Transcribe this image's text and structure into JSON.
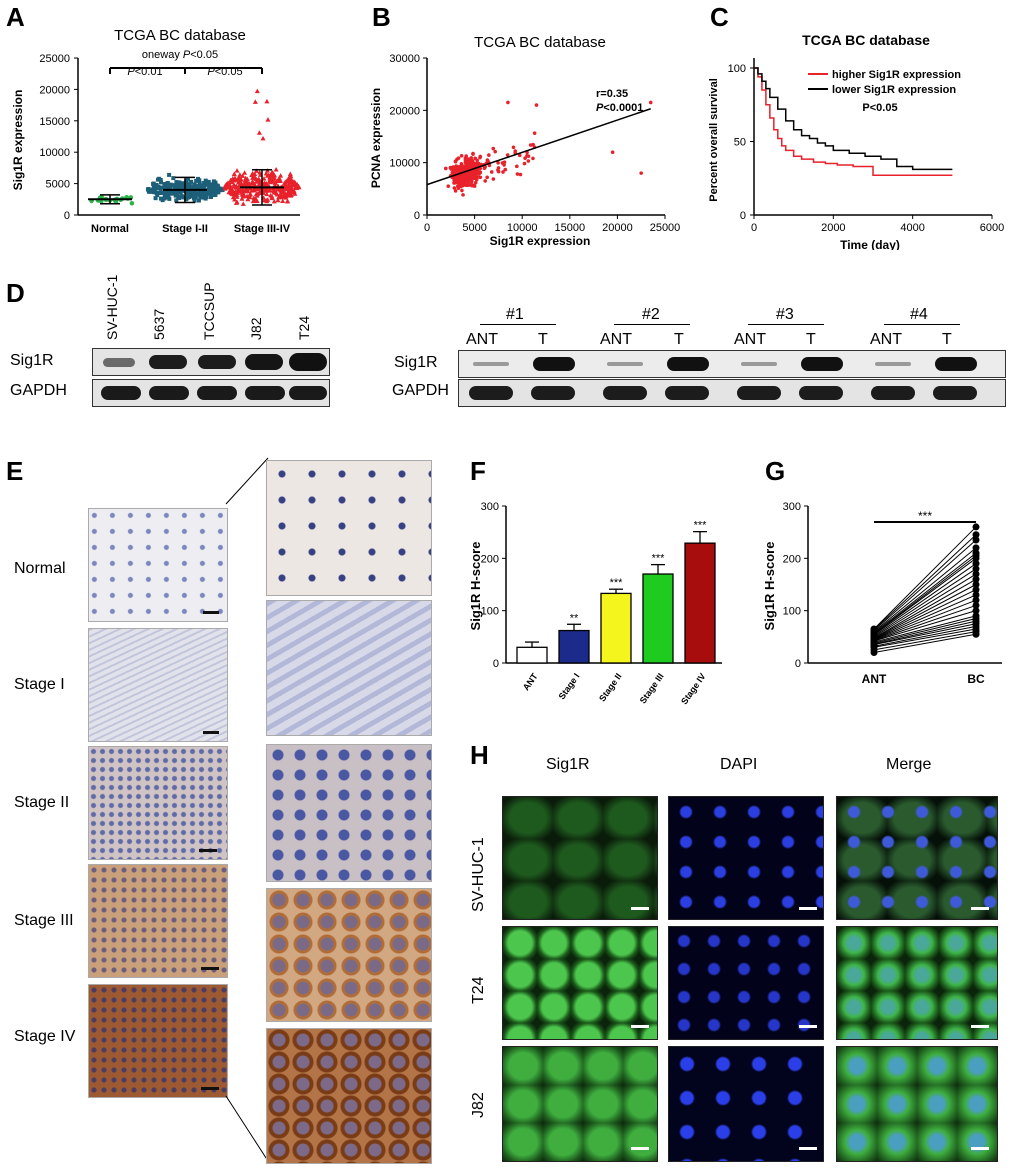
{
  "panels": {
    "A": "A",
    "B": "B",
    "C": "C",
    "D": "D",
    "E": "E",
    "F": "F",
    "G": "G",
    "H": "H"
  },
  "A": {
    "title": "TCGA BC database",
    "oneway_pre": "oneway ",
    "oneway_p": "P",
    "oneway_post": "<0.05",
    "p1_p": "P",
    "p1_post": "<0.01",
    "p2_p": "P",
    "p2_post": "<0.05",
    "ylabel": "Sig1R expression",
    "yticks": [
      "0",
      "5000",
      "10000",
      "15000",
      "20000",
      "25000"
    ],
    "groups": [
      "Normal",
      "Stage I-II",
      "Stage III-IV"
    ],
    "colors": {
      "normal": "#2db34a",
      "early": "#1d5f78",
      "late": "#e8212b"
    }
  },
  "B": {
    "title": "TCGA BC database",
    "r_text": "r=0.35",
    "p_p": "P",
    "p_post": "<0.0001",
    "ylabel": "PCNA expression",
    "xlabel": "Sig1R expression",
    "yticks": [
      "0",
      "10000",
      "20000",
      "30000"
    ],
    "xticks": [
      "0",
      "5000",
      "10000",
      "15000",
      "20000",
      "25000"
    ],
    "color": "#e8212b"
  },
  "C": {
    "title": "TCGA BC database",
    "legend": [
      "higher Sig1R expression",
      "lower Sig1R expression"
    ],
    "ptext": "P<0.05",
    "ylabel": "Percent overall survival",
    "xlabel": "Time (day)",
    "yticks": [
      "0",
      "50",
      "100"
    ],
    "xticks": [
      "0",
      "2000",
      "4000",
      "6000"
    ],
    "colors": {
      "higher": "#e8212b",
      "lower": "#000000"
    }
  },
  "D": {
    "cell_lines": [
      "SV-HUC-1",
      "5637",
      "TCCSUP",
      "J82",
      "T24"
    ],
    "row_labels": [
      "Sig1R",
      "GAPDH"
    ],
    "pairs": [
      "#1",
      "#2",
      "#3",
      "#4"
    ],
    "pair_cols": [
      "ANT",
      "T"
    ]
  },
  "E": {
    "stages": [
      "Normal",
      "Stage I",
      "Stage II",
      "Stage III",
      "Stage IV"
    ]
  },
  "F": {
    "ylabel": "Sig1R H-score",
    "yticks": [
      "0",
      "100",
      "200",
      "300"
    ]
  },
  "G": {
    "ylabel": "Sig1R H-score",
    "yticks": [
      "0",
      "100",
      "200",
      "300"
    ],
    "groups": [
      "ANT",
      "BC"
    ],
    "sig": "***"
  },
  "H": {
    "cols": [
      "Sig1R",
      "DAPI",
      "Merge"
    ],
    "rows": [
      "SV-HUC-1",
      "T24",
      "J82"
    ]
  },
  "chart_data": [
    {
      "type": "scatter",
      "panel": "A",
      "title": "TCGA BC database",
      "ylabel": "Sig1R expression",
      "categories": [
        "Normal",
        "Stage I-II",
        "Stage III-IV"
      ],
      "ylim": [
        0,
        25000
      ],
      "series": [
        {
          "name": "Normal",
          "mean": 2500,
          "sd": 700,
          "min": 1600,
          "max": 4400
        },
        {
          "name": "Stage I-II",
          "mean": 4000,
          "sd": 2000,
          "min": 500,
          "max": 11500
        },
        {
          "name": "Stage III-IV",
          "mean": 4400,
          "sd": 2800,
          "min": 400,
          "max": 22500
        }
      ]
    },
    {
      "type": "scatter",
      "panel": "B",
      "title": "TCGA BC database",
      "xlabel": "Sig1R expression",
      "ylabel": "PCNA expression",
      "xlim": [
        0,
        25000
      ],
      "ylim": [
        0,
        30000
      ],
      "trend": {
        "x": [
          0,
          23500
        ],
        "y": [
          5800,
          20300
        ]
      },
      "outliers": [
        [
          23500,
          21500
        ],
        [
          19500,
          12000
        ],
        [
          22500,
          8000
        ],
        [
          8500,
          21500
        ],
        [
          11500,
          21000
        ]
      ]
    },
    {
      "type": "line",
      "panel": "C",
      "title": "TCGA BC database",
      "xlabel": "Time (day)",
      "ylabel": "Percent overall survival",
      "xlim": [
        0,
        6000
      ],
      "ylim": [
        0,
        100
      ],
      "series": [
        {
          "name": "higher Sig1R expression",
          "x": [
            0,
            100,
            200,
            300,
            400,
            500,
            600,
            700,
            800,
            1000,
            1200,
            1500,
            1800,
            2100,
            2500,
            3000,
            3500,
            4000,
            4500,
            5000
          ],
          "y": [
            100,
            94,
            85,
            75,
            66,
            58,
            52,
            47,
            44,
            40,
            38,
            36,
            35,
            34,
            33,
            27,
            27,
            27,
            27,
            27
          ]
        },
        {
          "name": "lower Sig1R expression",
          "x": [
            0,
            100,
            200,
            300,
            400,
            600,
            800,
            1000,
            1200,
            1400,
            1600,
            1800,
            2000,
            2400,
            2800,
            3200,
            3600,
            4000,
            4500,
            5000
          ],
          "y": [
            100,
            96,
            91,
            86,
            80,
            72,
            64,
            58,
            54,
            52,
            49,
            47,
            44,
            42,
            40,
            38,
            33,
            31,
            31,
            31
          ]
        }
      ]
    },
    {
      "type": "bar",
      "panel": "F",
      "ylabel": "Sig1R H-score",
      "categories": [
        "ANT",
        "Stage I",
        "Stage II",
        "Stage III",
        "Stage IV"
      ],
      "values": [
        30,
        62,
        133,
        170,
        229
      ],
      "errors": [
        10,
        12,
        8,
        18,
        22
      ],
      "significance": [
        "",
        "**",
        "***",
        "***",
        "***"
      ],
      "colors": [
        "#ffffff",
        "#1c2a8c",
        "#f5f51e",
        "#1fcb1f",
        "#a80d0d"
      ],
      "ylim": [
        0,
        300
      ]
    },
    {
      "type": "line",
      "panel": "G",
      "ylabel": "Sig1R H-score",
      "categories": [
        "ANT",
        "BC"
      ],
      "ylim": [
        0,
        300
      ],
      "pairs": [
        [
          20,
          55
        ],
        [
          25,
          60
        ],
        [
          30,
          65
        ],
        [
          32,
          70
        ],
        [
          35,
          75
        ],
        [
          36,
          80
        ],
        [
          38,
          85
        ],
        [
          40,
          90
        ],
        [
          42,
          100
        ],
        [
          43,
          110
        ],
        [
          44,
          120
        ],
        [
          45,
          130
        ],
        [
          46,
          140
        ],
        [
          47,
          150
        ],
        [
          48,
          160
        ],
        [
          50,
          170
        ],
        [
          52,
          180
        ],
        [
          54,
          190
        ],
        [
          55,
          200
        ],
        [
          56,
          205
        ],
        [
          58,
          210
        ],
        [
          60,
          220
        ],
        [
          62,
          235
        ],
        [
          64,
          245
        ],
        [
          65,
          260
        ]
      ]
    }
  ]
}
